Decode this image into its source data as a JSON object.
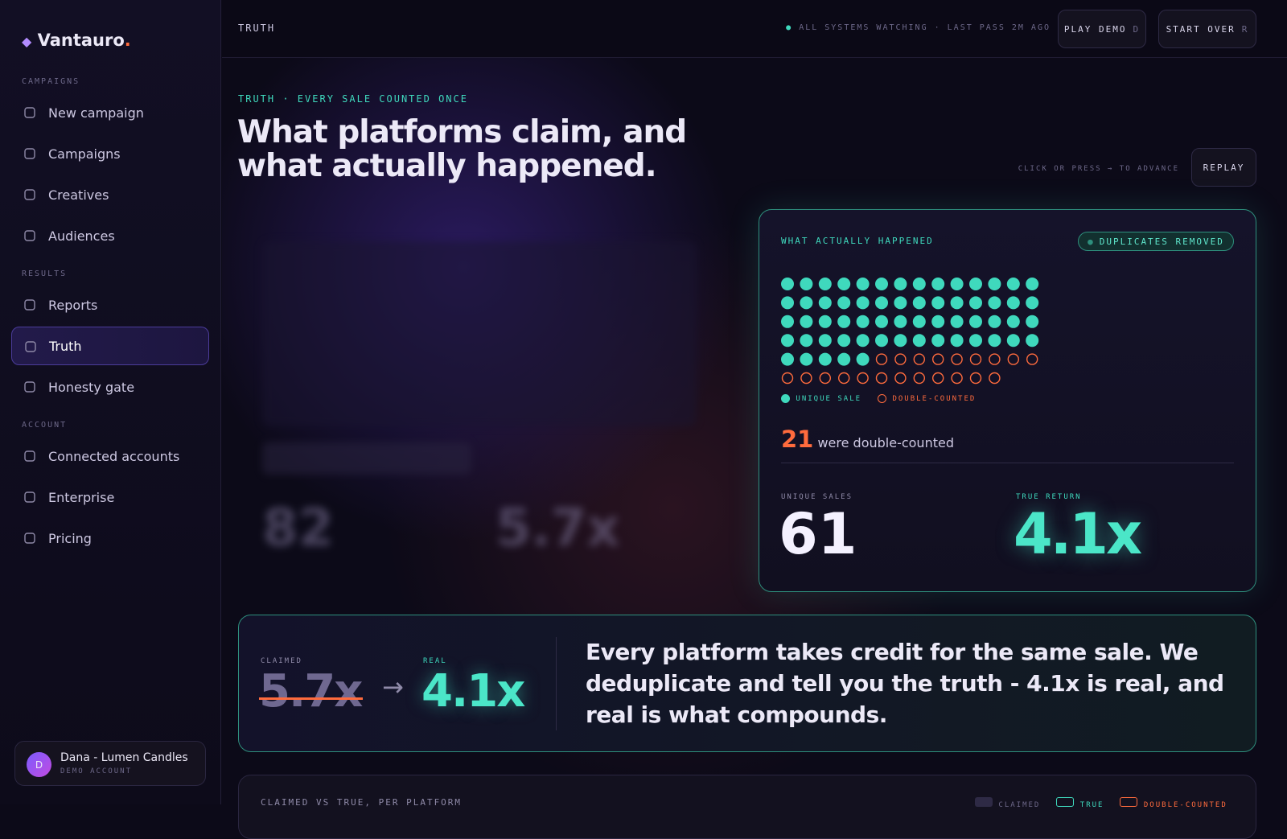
{
  "sidebar": {
    "brand": "Vantauro",
    "brand_dot": ".",
    "sections": [
      {
        "label": "CAMPAIGNS",
        "items": [
          {
            "label": "New campaign"
          },
          {
            "label": "Campaigns"
          },
          {
            "label": "Creatives"
          },
          {
            "label": "Audiences"
          }
        ]
      },
      {
        "label": "RESULTS",
        "items": [
          {
            "label": "Reports"
          },
          {
            "label": "Truth",
            "active": true
          },
          {
            "label": "Honesty gate"
          }
        ]
      },
      {
        "label": "ACCOUNT",
        "items": [
          {
            "label": "Connected accounts"
          },
          {
            "label": "Enterprise"
          },
          {
            "label": "Pricing"
          }
        ]
      }
    ],
    "user": {
      "initial": "D",
      "name": "Dana - Lumen Candles",
      "role": "DEMO ACCOUNT"
    }
  },
  "topbar": {
    "title": "TRUTH",
    "status": "ALL SYSTEMS WATCHING · LAST PASS 2M AGO",
    "buttons": [
      {
        "label": "PLAY DEMO",
        "key": "D"
      },
      {
        "label": "START OVER",
        "key": "R"
      }
    ]
  },
  "hero": {
    "eyebrow": "TRUTH · EVERY SALE COUNTED ONCE",
    "title": "What platforms claim, and what actually happened.",
    "hint": "CLICK OR PRESS → TO ADVANCE",
    "replay": "REPLAY"
  },
  "claimed_panel": {
    "total_sales": 82,
    "return": "5.7x"
  },
  "truth_panel": {
    "title": "WHAT ACTUALLY HAPPENED",
    "badge": "DUPLICATES REMOVED",
    "legend": [
      "UNIQUE SALE",
      "DOUBLE-COUNTED"
    ],
    "double_counted": 21,
    "double_counted_text": "were double-counted",
    "unique_sales_label": "UNIQUE SALES",
    "unique_sales": 61,
    "true_return_label": "TRUE RETURN",
    "true_return": "4.1x"
  },
  "summary": {
    "claimed_label": "CLAIMED",
    "claimed": "5.7x",
    "real_label": "REAL",
    "real": "4.1x",
    "message": "Every platform takes credit for the same sale. We deduplicate and tell you the truth - 4.1x is real, and real is what compounds."
  },
  "breakdown": {
    "title": "CLAIMED VS TRUE, PER PLATFORM",
    "legend": [
      "CLAIMED",
      "TRUE",
      "DOUBLE-COUNTED"
    ]
  }
}
